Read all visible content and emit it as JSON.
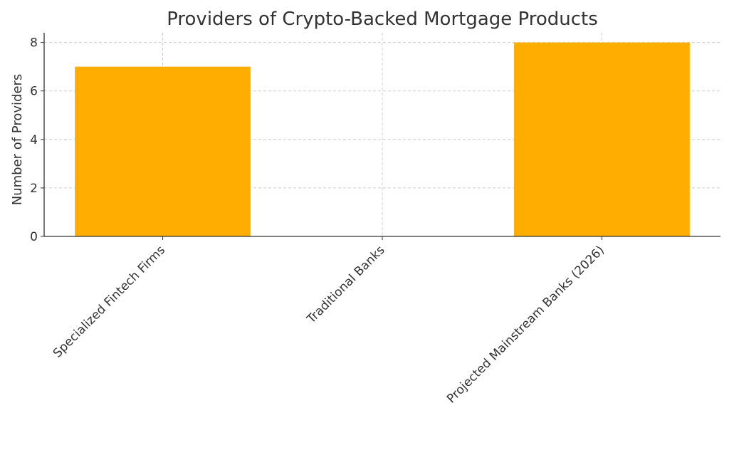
{
  "chart_data": {
    "type": "bar",
    "title": "Providers of Crypto-Backed Mortgage Products",
    "y_label": "Number of Providers",
    "categories": [
      "Specialized Fintech Firms",
      "Traditional Banks",
      "Projected Mainstream Banks (2026)"
    ],
    "values": [
      7,
      0,
      8
    ],
    "color": "#ffad00",
    "ylim": [
      0,
      8.4
    ],
    "yticks": [
      0,
      2,
      4,
      6,
      8
    ],
    "grid": true
  }
}
